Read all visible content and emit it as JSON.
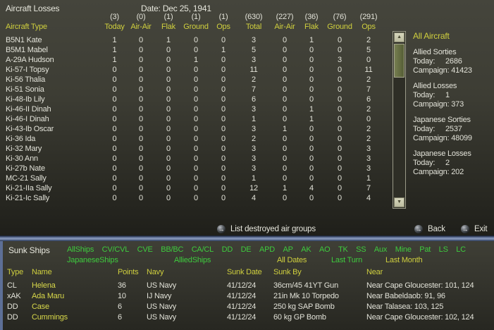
{
  "window": {
    "title": "Aircraft Losses",
    "date": "Date: Dec 25, 1941"
  },
  "aircraft_table": {
    "type_header": "Aircraft Type",
    "counts": [
      "(3)",
      "(0)",
      "(1)",
      "(1)",
      "(1)",
      "(630)",
      "(227)",
      "(36)",
      "(76)",
      "(291)"
    ],
    "headers": [
      "Today",
      "Air-Air",
      "Flak",
      "Ground",
      "Ops",
      "Total",
      "Air-Air",
      "Flak",
      "Ground",
      "Ops"
    ],
    "rows": [
      {
        "name": "B5N1 Kate",
        "values": [
          "1",
          "0",
          "1",
          "0",
          "0",
          "3",
          "0",
          "1",
          "0",
          "2"
        ]
      },
      {
        "name": "B5M1 Mabel",
        "values": [
          "1",
          "0",
          "0",
          "0",
          "1",
          "5",
          "0",
          "0",
          "0",
          "5"
        ]
      },
      {
        "name": "A-29A Hudson",
        "values": [
          "1",
          "0",
          "0",
          "1",
          "0",
          "3",
          "0",
          "0",
          "3",
          "0"
        ]
      },
      {
        "name": "Ki-57-I Topsy",
        "values": [
          "0",
          "0",
          "0",
          "0",
          "0",
          "11",
          "0",
          "0",
          "0",
          "11"
        ]
      },
      {
        "name": "Ki-56 Thalia",
        "values": [
          "0",
          "0",
          "0",
          "0",
          "0",
          "2",
          "0",
          "0",
          "0",
          "2"
        ]
      },
      {
        "name": "Ki-51 Sonia",
        "values": [
          "0",
          "0",
          "0",
          "0",
          "0",
          "7",
          "0",
          "0",
          "0",
          "7"
        ]
      },
      {
        "name": "Ki-48-Ib Lily",
        "values": [
          "0",
          "0",
          "0",
          "0",
          "0",
          "6",
          "0",
          "0",
          "0",
          "6"
        ]
      },
      {
        "name": "Ki-46-II Dinah",
        "values": [
          "0",
          "0",
          "0",
          "0",
          "0",
          "3",
          "0",
          "1",
          "0",
          "2"
        ]
      },
      {
        "name": "Ki-46-I Dinah",
        "values": [
          "0",
          "0",
          "0",
          "0",
          "0",
          "1",
          "0",
          "1",
          "0",
          "0"
        ]
      },
      {
        "name": "Ki-43-Ib Oscar",
        "values": [
          "0",
          "0",
          "0",
          "0",
          "0",
          "3",
          "1",
          "0",
          "0",
          "2"
        ]
      },
      {
        "name": "Ki-36 Ida",
        "values": [
          "0",
          "0",
          "0",
          "0",
          "0",
          "2",
          "0",
          "0",
          "0",
          "2"
        ]
      },
      {
        "name": "Ki-32 Mary",
        "values": [
          "0",
          "0",
          "0",
          "0",
          "0",
          "3",
          "0",
          "0",
          "0",
          "3"
        ]
      },
      {
        "name": "Ki-30 Ann",
        "values": [
          "0",
          "0",
          "0",
          "0",
          "0",
          "3",
          "0",
          "0",
          "0",
          "3"
        ]
      },
      {
        "name": "Ki-27b Nate",
        "values": [
          "0",
          "0",
          "0",
          "0",
          "0",
          "3",
          "0",
          "0",
          "0",
          "3"
        ]
      },
      {
        "name": "MC-21 Sally",
        "values": [
          "0",
          "0",
          "0",
          "0",
          "0",
          "1",
          "0",
          "0",
          "0",
          "1"
        ]
      },
      {
        "name": "Ki-21-IIa Sally",
        "values": [
          "0",
          "0",
          "0",
          "0",
          "0",
          "12",
          "1",
          "4",
          "0",
          "7"
        ]
      },
      {
        "name": "Ki-21-Ic Sally",
        "values": [
          "0",
          "0",
          "0",
          "0",
          "0",
          "4",
          "0",
          "0",
          "0",
          "4"
        ]
      }
    ]
  },
  "stats_panel": {
    "title": "All Aircraft",
    "groups": [
      {
        "label": "Allied Sorties",
        "today_label": "Today:",
        "today": "2686",
        "campaign_label": "Campaign:",
        "campaign": "41423"
      },
      {
        "label": "Allied Losses",
        "today_label": "Today:",
        "today": "1",
        "campaign_label": "Campaign:",
        "campaign": "373"
      },
      {
        "label": "Japanese Sorties",
        "today_label": "Today:",
        "today": "2537",
        "campaign_label": "Campaign:",
        "campaign": "48099"
      },
      {
        "label": "Japanese Losses",
        "today_label": "Today:",
        "today": "2",
        "campaign_label": "Campaign:",
        "campaign": "202"
      }
    ]
  },
  "bottom_bar": {
    "list_destroyed_label": "List destroyed air groups",
    "back_label": "Back",
    "exit_label": "Exit"
  },
  "sunk_ships": {
    "title": "Sunk Ships",
    "class_filters": [
      "AllShips",
      "CV/CVL",
      "CVE",
      "BB/BC",
      "CA/CL",
      "DD",
      "DE",
      "APD",
      "AP",
      "AK",
      "AO",
      "TK",
      "SS",
      "Aux",
      "Mine",
      "Pat",
      "LS",
      "LC"
    ],
    "nation_filters": [
      "JapaneseShips",
      "AlliedShips"
    ],
    "date_filters": [
      {
        "label": "All Dates",
        "active": true
      },
      {
        "label": "Last Turn",
        "active": false
      },
      {
        "label": "Last Month",
        "active": true
      }
    ],
    "columns": {
      "type": "Type",
      "name": "Name",
      "points": "Points",
      "navy": "Navy",
      "sunk_date": "Sunk Date",
      "sunk_by": "Sunk By",
      "near": "Near"
    },
    "rows": [
      {
        "type": "CL",
        "name": "Helena",
        "points": "36",
        "navy": "US Navy",
        "sunk_date": "41/12/24",
        "sunk_by": "36cm/45 41YT Gun",
        "near": "Near Cape Gloucester: 101, 124"
      },
      {
        "type": "xAK",
        "name": "Ada Maru",
        "points": "10",
        "navy": "IJ Navy",
        "sunk_date": "41/12/24",
        "sunk_by": "21in Mk 10 Torpedo",
        "near": "Near Babeldaob: 91, 96"
      },
      {
        "type": "DD",
        "name": "Case",
        "points": "6",
        "navy": "US Navy",
        "sunk_date": "41/12/24",
        "sunk_by": "250 kg SAP Bomb",
        "near": "Near Talasea: 103, 125"
      },
      {
        "type": "DD",
        "name": "Cummings",
        "points": "6",
        "navy": "US Navy",
        "sunk_date": "41/12/24",
        "sunk_by": "60 kg GP Bomb",
        "near": "Near Cape Gloucester: 102, 124"
      }
    ]
  },
  "colors": {
    "yellow": "#cfcf3e",
    "green": "#3ecb3e",
    "white": "#e2e2d8",
    "separator_blue": "#8e9ec0"
  }
}
